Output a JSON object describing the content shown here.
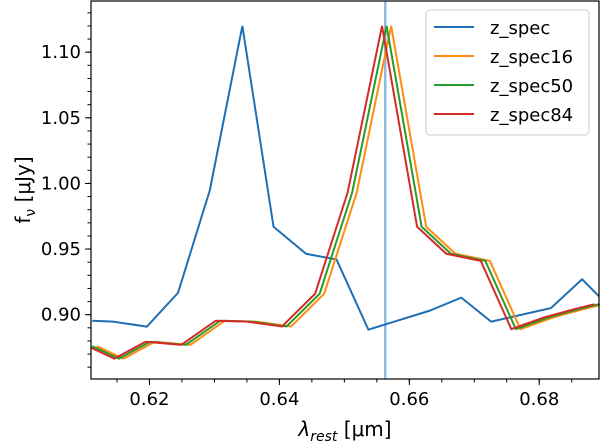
{
  "chart_data": {
    "type": "line",
    "xlabel": "λ",
    "xlabel_sub": "rest",
    "xlabel_unit": " [μm]",
    "ylabel": "f",
    "ylabel_sub": "ν",
    "ylabel_unit": " [μJy]",
    "xlim": [
      0.611,
      0.6892
    ],
    "ylim": [
      0.851,
      1.139
    ],
    "xticks": [
      0.62,
      0.64,
      0.66,
      0.68
    ],
    "xtick_labels": [
      "0.62",
      "0.64",
      "0.66",
      "0.68"
    ],
    "yticks": [
      0.9,
      0.95,
      1.0,
      1.05,
      1.1
    ],
    "ytick_labels": [
      "0.90",
      "0.95",
      "1.00",
      "1.05",
      "1.10"
    ],
    "grid": false,
    "legend_position": "top-right",
    "vline": {
      "x": 0.6563,
      "color": "#8fbbe0"
    },
    "series": [
      {
        "name": "z_spec",
        "color": "#1f6fb4",
        "x": [
          0.6112,
          0.6144,
          0.6196,
          0.6244,
          0.6293,
          0.6343,
          0.6391,
          0.6441,
          0.6488,
          0.6537,
          0.6631,
          0.668,
          0.6726,
          0.6818,
          0.6866,
          0.6892
        ],
        "y": [
          0.8954,
          0.8947,
          0.8909,
          0.9167,
          0.995,
          1.12,
          0.967,
          0.9464,
          0.942,
          0.8886,
          0.903,
          0.913,
          0.8947,
          0.905,
          0.927,
          0.914
        ]
      },
      {
        "name": "z_spec16",
        "color": "#ff8c0e",
        "x": [
          0.6119,
          0.616,
          0.6208,
          0.6263,
          0.6316,
          0.6364,
          0.6418,
          0.6469,
          0.6519,
          0.6572,
          0.6626,
          0.6671,
          0.6724,
          0.6771,
          0.6822,
          0.6865,
          0.6899
        ],
        "y": [
          0.876,
          0.8665,
          0.8794,
          0.877,
          0.8954,
          0.8947,
          0.891,
          0.916,
          0.993,
          1.12,
          0.967,
          0.9464,
          0.941,
          0.889,
          0.898,
          0.9038,
          0.908
        ]
      },
      {
        "name": "z_spec50",
        "color": "#2a9a2a",
        "x": [
          0.6112,
          0.6153,
          0.6201,
          0.6256,
          0.6309,
          0.6357,
          0.6411,
          0.6462,
          0.6512,
          0.6565,
          0.6619,
          0.6664,
          0.6717,
          0.6764,
          0.6815,
          0.6858,
          0.6892
        ],
        "y": [
          0.876,
          0.8665,
          0.8794,
          0.877,
          0.8954,
          0.8947,
          0.891,
          0.916,
          0.993,
          1.12,
          0.967,
          0.9464,
          0.941,
          0.889,
          0.898,
          0.9038,
          0.908
        ]
      },
      {
        "name": "z_spec84",
        "color": "#d62a28",
        "x": [
          0.6105,
          0.6146,
          0.6194,
          0.6249,
          0.6302,
          0.635,
          0.6404,
          0.6455,
          0.6505,
          0.6558,
          0.6612,
          0.6657,
          0.671,
          0.6757,
          0.6808,
          0.6851,
          0.6885
        ],
        "y": [
          0.876,
          0.8665,
          0.8794,
          0.877,
          0.8954,
          0.8947,
          0.891,
          0.916,
          0.993,
          1.12,
          0.967,
          0.9464,
          0.941,
          0.889,
          0.898,
          0.9038,
          0.908
        ]
      }
    ]
  }
}
